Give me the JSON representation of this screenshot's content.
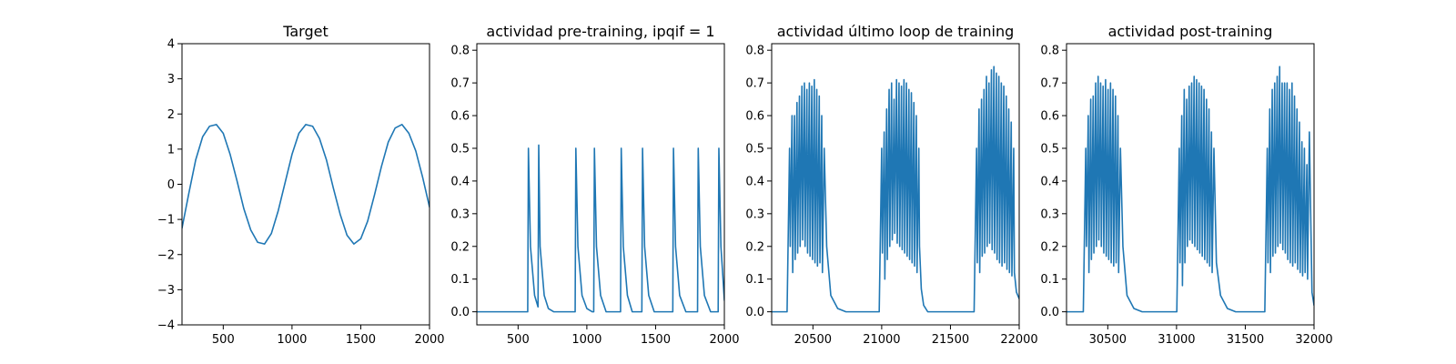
{
  "chart_data": [
    {
      "type": "line",
      "title": "Target",
      "xlabel": "",
      "ylabel": "",
      "xlim": [
        200,
        2000
      ],
      "ylim": [
        -4,
        4
      ],
      "xticks": [
        500,
        1000,
        1500,
        2000
      ],
      "yticks": [
        -4,
        -3,
        -2,
        -1,
        0,
        1,
        2,
        3,
        4
      ],
      "xtick_labels": [
        "500",
        "1000",
        "1500",
        "2000"
      ],
      "ytick_labels": [
        "−4",
        "−3",
        "−2",
        "−1",
        "0",
        "1",
        "2",
        "3",
        "4"
      ],
      "series": [
        {
          "name": "target",
          "color": "#1f77b4",
          "x": [
            200,
            250,
            300,
            350,
            400,
            450,
            500,
            550,
            600,
            650,
            700,
            750,
            800,
            850,
            900,
            950,
            1000,
            1050,
            1100,
            1150,
            1200,
            1250,
            1300,
            1350,
            1400,
            1450,
            1500,
            1550,
            1600,
            1650,
            1700,
            1750,
            1800,
            1850,
            1900,
            1950,
            2000
          ],
          "y": [
            -1.25,
            -0.25,
            0.7,
            1.35,
            1.65,
            1.7,
            1.45,
            0.85,
            0.1,
            -0.7,
            -1.3,
            -1.65,
            -1.7,
            -1.4,
            -0.75,
            0.05,
            0.85,
            1.45,
            1.7,
            1.65,
            1.3,
            0.7,
            -0.1,
            -0.85,
            -1.45,
            -1.7,
            -1.55,
            -1.05,
            -0.3,
            0.5,
            1.2,
            1.6,
            1.7,
            1.45,
            0.95,
            0.2,
            -0.65
          ]
        }
      ]
    },
    {
      "type": "line",
      "title": "actividad pre-training, ipqif = 1",
      "xlabel": "",
      "ylabel": "",
      "xlim": [
        200,
        2000
      ],
      "ylim": [
        -0.04,
        0.82
      ],
      "xticks": [
        500,
        1000,
        1500,
        2000
      ],
      "yticks": [
        0.0,
        0.1,
        0.2,
        0.3,
        0.4,
        0.5,
        0.6,
        0.7,
        0.8
      ],
      "xtick_labels": [
        "500",
        "1000",
        "1500",
        "2000"
      ],
      "ytick_labels": [
        "0.0",
        "0.1",
        "0.2",
        "0.3",
        "0.4",
        "0.5",
        "0.6",
        "0.7",
        "0.8"
      ],
      "series": [
        {
          "name": "actividad",
          "color": "#1f77b4",
          "x": [
            200,
            560,
            570,
            575,
            590,
            620,
            645,
            650,
            660,
            690,
            720,
            760,
            905,
            915,
            920,
            935,
            965,
            1000,
            1040,
            1050,
            1055,
            1070,
            1100,
            1140,
            1235,
            1245,
            1250,
            1265,
            1295,
            1330,
            1390,
            1400,
            1405,
            1420,
            1450,
            1490,
            1615,
            1625,
            1630,
            1645,
            1675,
            1720,
            1795,
            1805,
            1810,
            1825,
            1855,
            1900,
            1945,
            1955,
            1960,
            1975,
            2000
          ],
          "y": [
            0.0,
            0.0,
            0.0,
            0.5,
            0.2,
            0.05,
            0.015,
            0.51,
            0.2,
            0.05,
            0.01,
            0.0,
            0.0,
            0.0,
            0.5,
            0.2,
            0.05,
            0.01,
            0.0,
            0.0,
            0.5,
            0.2,
            0.05,
            0.0,
            0.0,
            0.0,
            0.5,
            0.2,
            0.05,
            0.0,
            0.0,
            0.0,
            0.5,
            0.2,
            0.05,
            0.0,
            0.0,
            0.0,
            0.5,
            0.2,
            0.05,
            0.0,
            0.0,
            0.0,
            0.5,
            0.2,
            0.05,
            0.0,
            0.0,
            0.0,
            0.5,
            0.2,
            0.035
          ]
        }
      ]
    },
    {
      "type": "line",
      "title": "actividad último loop de training",
      "xlabel": "",
      "ylabel": "",
      "xlim": [
        20200,
        22000
      ],
      "ylim": [
        -0.04,
        0.82
      ],
      "xticks": [
        20500,
        21000,
        21500,
        22000
      ],
      "yticks": [
        0.0,
        0.1,
        0.2,
        0.3,
        0.4,
        0.5,
        0.6,
        0.7,
        0.8
      ],
      "xtick_labels": [
        "20500",
        "21000",
        "21500",
        "22000"
      ],
      "ytick_labels": [
        "0.0",
        "0.1",
        "0.2",
        "0.3",
        "0.4",
        "0.5",
        "0.6",
        "0.7",
        "0.8"
      ],
      "series": [
        {
          "name": "actividad",
          "color": "#1f77b4",
          "x": [
            20200,
            20310,
            20312,
            20330,
            20335,
            20348,
            20353,
            20366,
            20371,
            20384,
            20389,
            20402,
            20407,
            20420,
            20425,
            20438,
            20443,
            20456,
            20461,
            20474,
            20479,
            20492,
            20497,
            20510,
            20515,
            20528,
            20533,
            20546,
            20551,
            20564,
            20569,
            20582,
            20600,
            20630,
            20680,
            20740,
            20980,
            20982,
            21000,
            21005,
            21018,
            21023,
            21036,
            21041,
            21054,
            21059,
            21072,
            21077,
            21090,
            21095,
            21108,
            21113,
            21126,
            21131,
            21144,
            21149,
            21162,
            21167,
            21180,
            21185,
            21198,
            21203,
            21216,
            21221,
            21234,
            21239,
            21252,
            21257,
            21270,
            21275,
            21288,
            21305,
            21335,
            21380,
            21440,
            21670,
            21672,
            21690,
            21695,
            21708,
            21713,
            21726,
            21731,
            21744,
            21749,
            21762,
            21767,
            21780,
            21785,
            21798,
            21803,
            21816,
            21821,
            21834,
            21839,
            21852,
            21857,
            21870,
            21875,
            21888,
            21893,
            21906,
            21911,
            21924,
            21929,
            21942,
            21947,
            21960,
            21965,
            21980,
            22000
          ],
          "y": [
            0.0,
            0.0,
            0.0,
            0.5,
            0.2,
            0.6,
            0.12,
            0.6,
            0.16,
            0.64,
            0.18,
            0.66,
            0.2,
            0.69,
            0.22,
            0.7,
            0.2,
            0.68,
            0.18,
            0.7,
            0.17,
            0.69,
            0.16,
            0.71,
            0.15,
            0.68,
            0.14,
            0.66,
            0.15,
            0.6,
            0.12,
            0.5,
            0.2,
            0.05,
            0.01,
            0.0,
            0.0,
            0.0,
            0.5,
            0.18,
            0.55,
            0.1,
            0.62,
            0.16,
            0.68,
            0.2,
            0.7,
            0.22,
            0.65,
            0.24,
            0.71,
            0.21,
            0.7,
            0.2,
            0.69,
            0.19,
            0.71,
            0.18,
            0.7,
            0.17,
            0.68,
            0.16,
            0.67,
            0.15,
            0.64,
            0.14,
            0.6,
            0.12,
            0.5,
            0.2,
            0.07,
            0.02,
            0.0,
            0.0,
            0.0,
            0.0,
            0.0,
            0.5,
            0.15,
            0.62,
            0.12,
            0.65,
            0.17,
            0.68,
            0.18,
            0.72,
            0.2,
            0.7,
            0.21,
            0.74,
            0.19,
            0.75,
            0.18,
            0.73,
            0.16,
            0.72,
            0.15,
            0.7,
            0.14,
            0.69,
            0.15,
            0.66,
            0.13,
            0.62,
            0.12,
            0.58,
            0.11,
            0.5,
            0.12,
            0.06,
            0.04
          ]
        }
      ]
    },
    {
      "type": "line",
      "title": "actividad post-training",
      "xlabel": "",
      "ylabel": "",
      "xlim": [
        30200,
        32000
      ],
      "ylim": [
        -0.04,
        0.82
      ],
      "xticks": [
        30500,
        31000,
        31500,
        32000
      ],
      "yticks": [
        0.0,
        0.1,
        0.2,
        0.3,
        0.4,
        0.5,
        0.6,
        0.7,
        0.8
      ],
      "xtick_labels": [
        "30500",
        "31000",
        "31500",
        "32000"
      ],
      "ytick_labels": [
        "0.0",
        "0.1",
        "0.2",
        "0.3",
        "0.4",
        "0.5",
        "0.6",
        "0.7",
        "0.8"
      ],
      "series": [
        {
          "name": "actividad",
          "color": "#1f77b4",
          "x": [
            30200,
            30320,
            30322,
            30340,
            30345,
            30358,
            30363,
            30376,
            30381,
            30394,
            30399,
            30412,
            30417,
            30430,
            30435,
            30448,
            30453,
            30466,
            30471,
            30484,
            30489,
            30502,
            30507,
            30520,
            30525,
            30538,
            30543,
            30556,
            30561,
            30574,
            30579,
            30592,
            30610,
            30640,
            30690,
            30750,
            31000,
            31002,
            31020,
            31025,
            31038,
            31043,
            31056,
            31061,
            31074,
            31079,
            31092,
            31097,
            31110,
            31115,
            31128,
            31133,
            31146,
            31151,
            31164,
            31169,
            31182,
            31187,
            31200,
            31205,
            31218,
            31223,
            31236,
            31241,
            31254,
            31259,
            31272,
            31290,
            31320,
            31370,
            31430,
            31640,
            31642,
            31660,
            31665,
            31678,
            31683,
            31696,
            31701,
            31714,
            31719,
            31732,
            31737,
            31750,
            31755,
            31768,
            31773,
            31786,
            31791,
            31804,
            31809,
            31822,
            31827,
            31840,
            31845,
            31858,
            31863,
            31876,
            31881,
            31894,
            31899,
            31912,
            31917,
            31930,
            31935,
            31948,
            31953,
            31966,
            31985,
            32000
          ],
          "y": [
            0.0,
            0.0,
            0.0,
            0.5,
            0.2,
            0.6,
            0.12,
            0.65,
            0.16,
            0.66,
            0.18,
            0.7,
            0.2,
            0.72,
            0.22,
            0.7,
            0.2,
            0.69,
            0.18,
            0.71,
            0.17,
            0.68,
            0.16,
            0.7,
            0.15,
            0.68,
            0.14,
            0.66,
            0.15,
            0.6,
            0.12,
            0.5,
            0.2,
            0.05,
            0.01,
            0.0,
            0.0,
            0.0,
            0.5,
            0.15,
            0.6,
            0.08,
            0.68,
            0.15,
            0.65,
            0.2,
            0.69,
            0.22,
            0.7,
            0.21,
            0.72,
            0.2,
            0.71,
            0.19,
            0.7,
            0.18,
            0.69,
            0.17,
            0.68,
            0.16,
            0.65,
            0.15,
            0.62,
            0.14,
            0.55,
            0.12,
            0.5,
            0.15,
            0.05,
            0.01,
            0.0,
            0.0,
            0.0,
            0.5,
            0.15,
            0.62,
            0.12,
            0.68,
            0.17,
            0.7,
            0.18,
            0.72,
            0.2,
            0.75,
            0.21,
            0.7,
            0.19,
            0.7,
            0.18,
            0.7,
            0.16,
            0.68,
            0.15,
            0.7,
            0.14,
            0.66,
            0.15,
            0.62,
            0.13,
            0.58,
            0.12,
            0.52,
            0.11,
            0.5,
            0.12,
            0.45,
            0.1,
            0.55,
            0.06,
            0.02
          ]
        }
      ]
    }
  ]
}
